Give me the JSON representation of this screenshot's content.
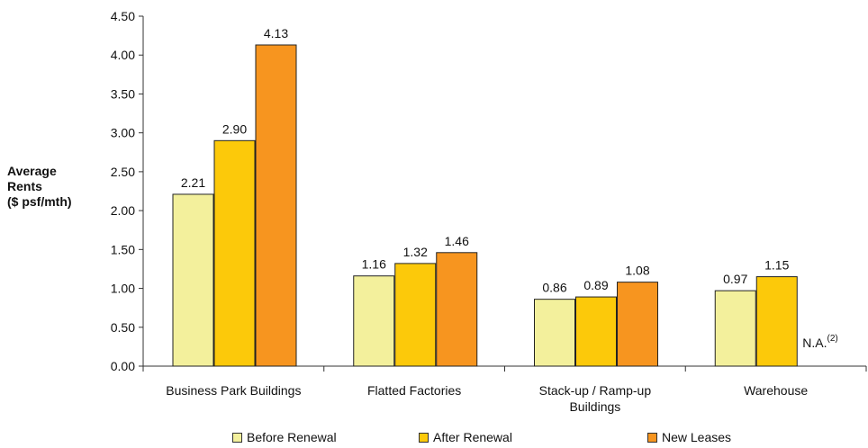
{
  "chart_data": {
    "type": "bar",
    "title": "",
    "ylabel_lines": [
      "Average",
      "Rents",
      "($ psf/mth)"
    ],
    "xlabel": "",
    "ylim": [
      0,
      4.5
    ],
    "yticks": [
      "0.00",
      "0.50",
      "1.00",
      "1.50",
      "2.00",
      "2.50",
      "3.00",
      "3.50",
      "4.00",
      "4.50"
    ],
    "categories": [
      [
        "Business Park Buildings"
      ],
      [
        "Flatted Factories"
      ],
      [
        "Stack-up / Ramp-up",
        "Buildings"
      ],
      [
        "Warehouse"
      ]
    ],
    "series": [
      {
        "name": "Before Renewal",
        "color": "#f3f09c",
        "values": [
          2.21,
          1.16,
          0.86,
          0.97
        ],
        "labels": [
          "2.21",
          "1.16",
          "0.86",
          "0.97"
        ]
      },
      {
        "name": "After Renewal",
        "color": "#fcc90a",
        "values": [
          2.9,
          1.32,
          0.89,
          1.15
        ],
        "labels": [
          "2.90",
          "1.32",
          "0.89",
          "1.15"
        ]
      },
      {
        "name": "New Leases",
        "color": "#f7951f",
        "values": [
          4.13,
          1.46,
          1.08,
          null
        ],
        "labels": [
          "4.13",
          "1.46",
          "1.08",
          ""
        ]
      }
    ],
    "annotations": [
      {
        "category_index": 3,
        "series_index": 2,
        "text": "N.A.",
        "superscript": "(2)"
      }
    ],
    "grid": false,
    "legend_position": "bottom"
  }
}
